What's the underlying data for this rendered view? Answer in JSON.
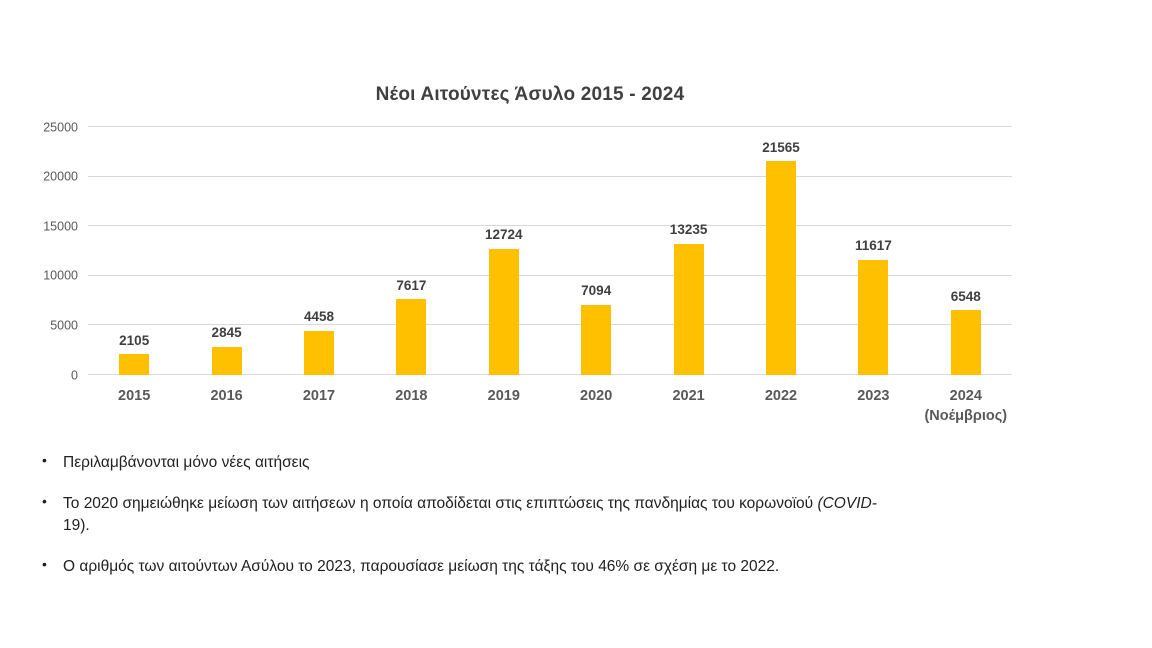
{
  "chart_data": {
    "type": "bar",
    "title": "Νέοι Αιτούντες Άσυλο 2015 - 2024",
    "categories": [
      "2015",
      "2016",
      "2017",
      "2018",
      "2019",
      "2020",
      "2021",
      "2022",
      "2023",
      "2024"
    ],
    "category_sublabels": [
      "",
      "",
      "",
      "",
      "",
      "",
      "",
      "",
      "",
      "(Νοέμβριος)"
    ],
    "values": [
      2105,
      2845,
      4458,
      7617,
      12724,
      7094,
      13235,
      21565,
      11617,
      6548
    ],
    "value_labels": true,
    "ylim": [
      0,
      25000
    ],
    "yticks": [
      0,
      5000,
      10000,
      15000,
      20000,
      25000
    ],
    "grid": true,
    "legend": "none",
    "bar_color": "#FFC000",
    "gridline_color": "#D9D9D9"
  },
  "notes": {
    "bullet_char": "•",
    "items": [
      {
        "text": "Περιλαμβάνονται μόνο νέες αιτήσεις"
      },
      {
        "pre": "Το 2020 σημειώθηκε μείωση των αιτήσεων η οποία αποδίδεται στις επιπτώσεις της πανδημίας του κορωνοϊού ",
        "italic": "(COVID-",
        "post": "19)."
      },
      {
        "text": "Ο αριθμός των αιτούντων Ασύλου το 2023, παρουσίασε μείωση της τάξης του 46% σε σχέση με το 2022."
      }
    ]
  }
}
